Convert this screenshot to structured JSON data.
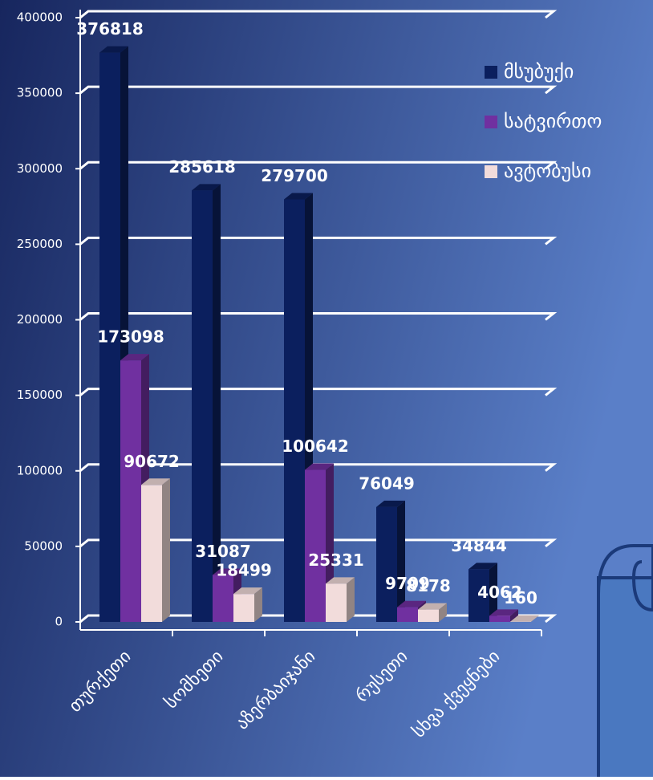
{
  "chart_data": {
    "type": "bar3d",
    "categories": [
      "თურქეთი",
      "სომხეთი",
      "აზერბაიჯანი",
      "რუსეთი",
      "სხვა ქვეყნები"
    ],
    "series": [
      {
        "name": "მსუბუქი",
        "color": "#0b1f5e",
        "values": [
          376818,
          285618,
          279700,
          76049,
          34844
        ]
      },
      {
        "name": "სატვირთო",
        "color": "#7030a0",
        "values": [
          173098,
          31087,
          100642,
          9709,
          4062
        ]
      },
      {
        "name": "ავტობუსი",
        "color": "#f2dcdb",
        "values": [
          90672,
          18499,
          25331,
          8178,
          160
        ]
      }
    ],
    "ylim": [
      0,
      400000
    ],
    "yticks": [
      0,
      50000,
      100000,
      150000,
      200000,
      250000,
      300000,
      350000,
      400000
    ],
    "grid": true,
    "legend": "right"
  }
}
